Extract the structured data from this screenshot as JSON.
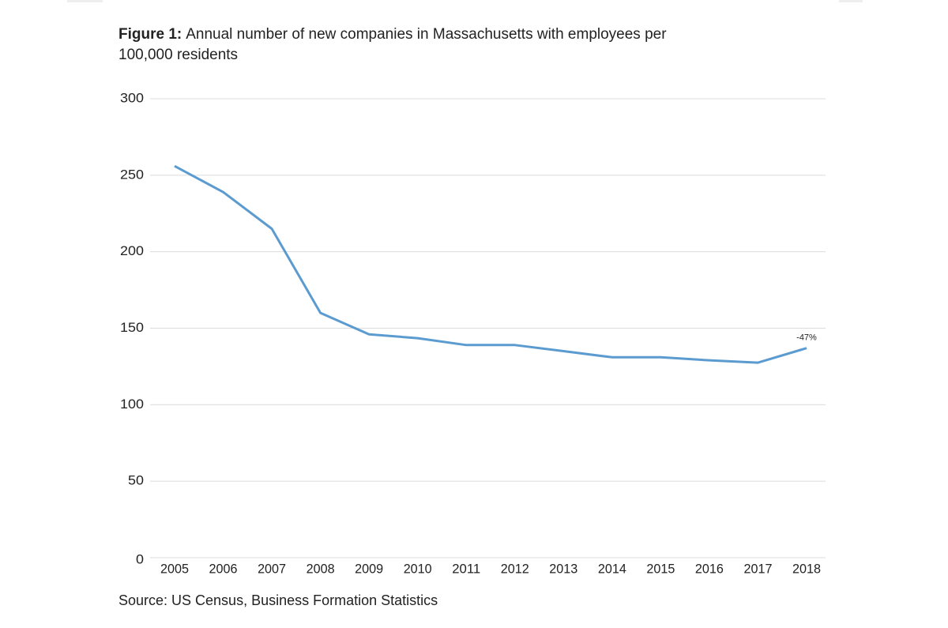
{
  "chart_data": {
    "type": "line",
    "figure_label": "Figure 1:",
    "title": "Annual number of new companies in Massachusetts with employees per 100,000 residents",
    "source": "Source: US Census, Business Formation Statistics",
    "categories": [
      "2005",
      "2006",
      "2007",
      "2008",
      "2009",
      "2010",
      "2011",
      "2012",
      "2013",
      "2014",
      "2015",
      "2016",
      "2017",
      "2018"
    ],
    "series": [
      {
        "color": "#5b9bd0",
        "values": [
          256,
          239,
          215,
          160,
          146,
          143.5,
          139,
          139,
          135,
          131,
          131,
          129,
          127.5,
          137
        ]
      }
    ],
    "annotations": [
      {
        "text": "-47%",
        "index": 13
      }
    ],
    "ylim": [
      0,
      300
    ],
    "yticks": [
      0,
      50,
      100,
      150,
      200,
      250,
      300
    ],
    "grid": true
  }
}
